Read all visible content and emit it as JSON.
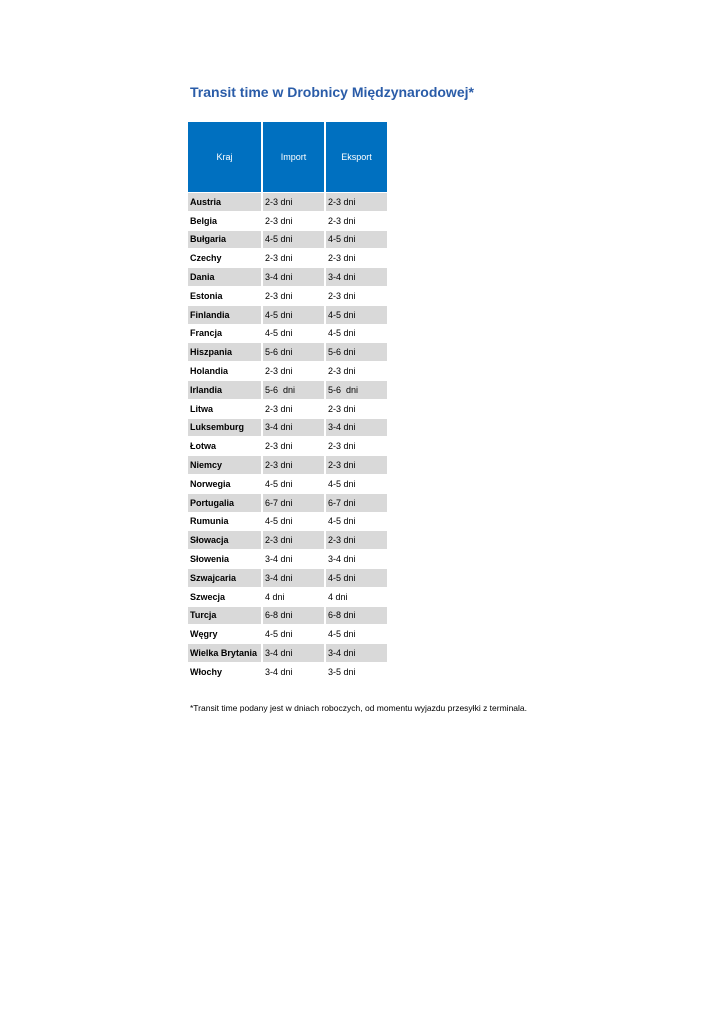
{
  "header": {
    "title": "Transit time w Drobnicy Międzynarodowej*"
  },
  "table": {
    "columns": [
      "Kraj",
      "Import",
      "Eksport"
    ],
    "rows": [
      [
        "Austria",
        "2-3 dni",
        "2-3 dni"
      ],
      [
        "Belgia",
        "2-3 dni",
        "2-3 dni"
      ],
      [
        "Bułgaria",
        "4-5 dni",
        "4-5 dni"
      ],
      [
        "Czechy",
        "2-3 dni",
        "2-3 dni"
      ],
      [
        "Dania",
        "3-4 dni",
        "3-4 dni"
      ],
      [
        "Estonia",
        "2-3 dni",
        "2-3 dni"
      ],
      [
        "Finlandia",
        "4-5 dni",
        "4-5 dni"
      ],
      [
        "Francja",
        "4-5 dni",
        "4-5 dni"
      ],
      [
        "Hiszpania",
        "5-6 dni",
        "5-6 dni"
      ],
      [
        "Holandia",
        "2-3 dni",
        "2-3 dni"
      ],
      [
        "Irlandia",
        "5-6  dni",
        "5-6  dni"
      ],
      [
        "Litwa",
        "2-3 dni",
        "2-3 dni"
      ],
      [
        "Luksemburg",
        "3-4 dni",
        "3-4 dni"
      ],
      [
        "Łotwa",
        "2-3 dni",
        "2-3 dni"
      ],
      [
        "Niemcy",
        "2-3 dni",
        "2-3 dni"
      ],
      [
        "Norwegia",
        "4-5 dni",
        "4-5 dni"
      ],
      [
        "Portugalia",
        "6-7 dni",
        "6-7 dni"
      ],
      [
        "Rumunia",
        "4-5 dni",
        "4-5 dni"
      ],
      [
        "Słowacja",
        "2-3 dni",
        "2-3 dni"
      ],
      [
        "Słowenia",
        "3-4 dni",
        "3-4 dni"
      ],
      [
        "Szwajcaria",
        "3-4 dni",
        "4-5 dni"
      ],
      [
        "Szwecja",
        "4 dni",
        "4 dni"
      ],
      [
        "Turcja",
        "6-8 dni",
        "6-8 dni"
      ],
      [
        "Węgry",
        "4-5 dni",
        "4-5 dni"
      ],
      [
        "Wielka Brytania",
        "3-4 dni",
        "3-4 dni"
      ],
      [
        "Włochy",
        "3-4 dni",
        "3-5 dni"
      ]
    ]
  },
  "footnote": "*Transit time podany jest w dniach roboczych, od momentu wyjazdu przesyłki z terminala."
}
